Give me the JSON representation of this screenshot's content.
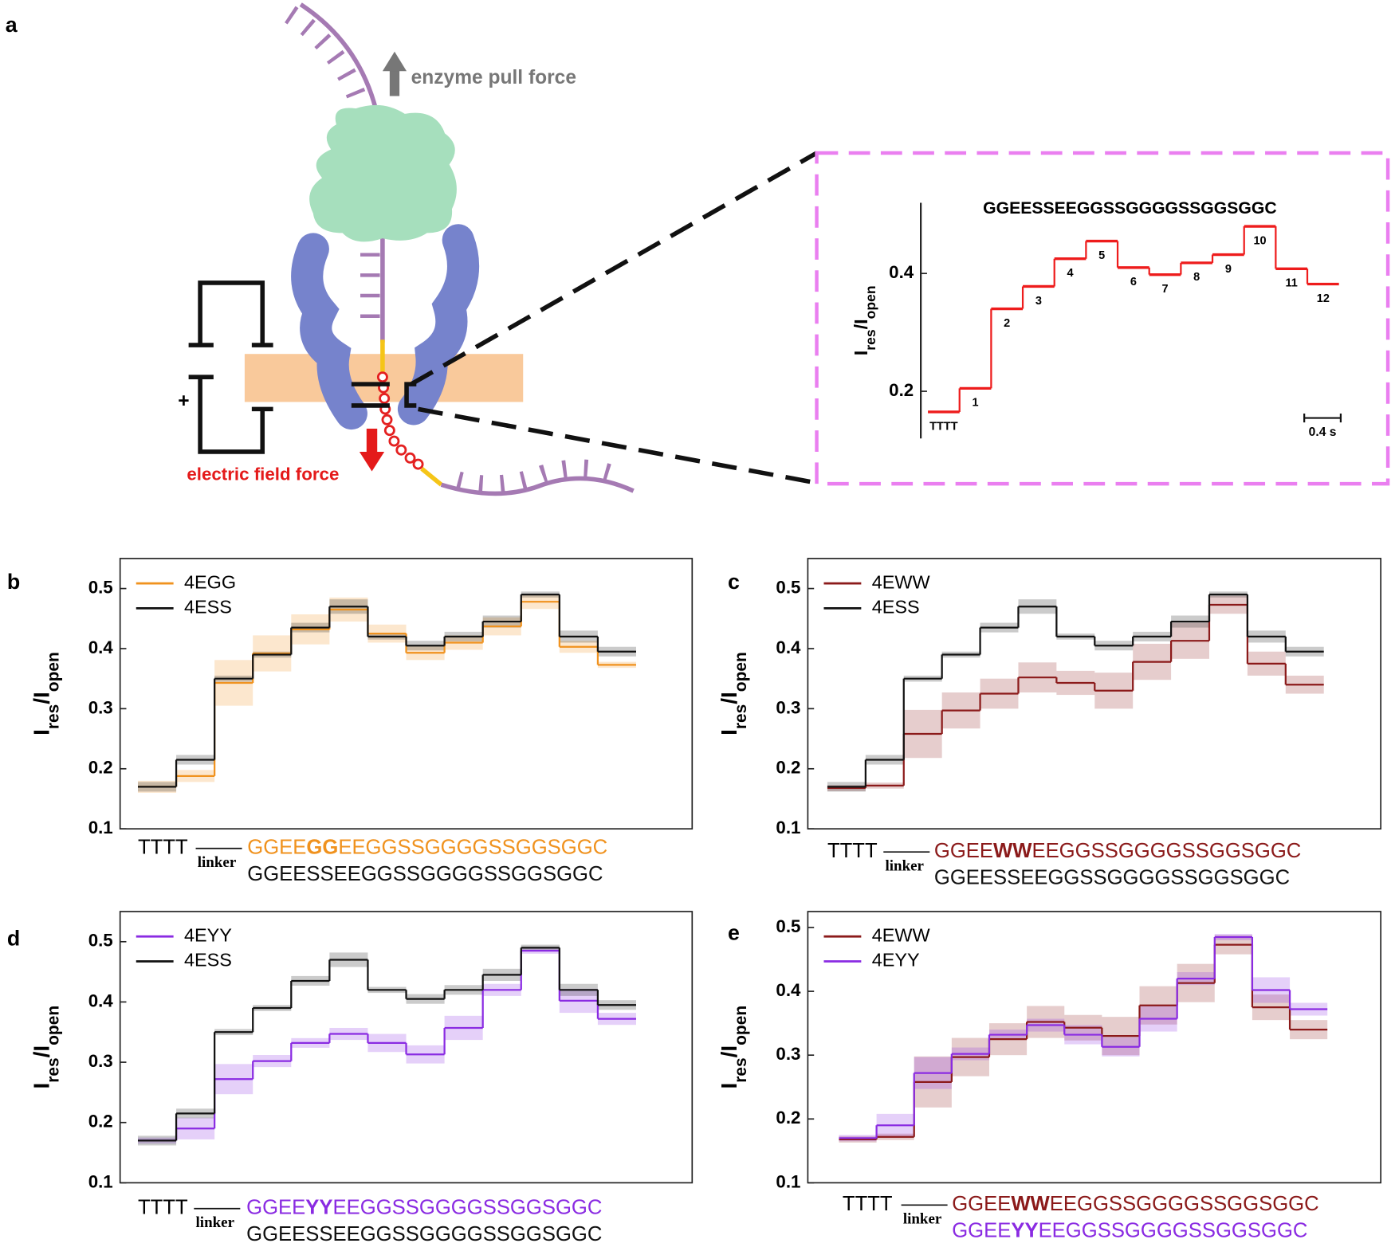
{
  "figure_a": {
    "letter": "a",
    "enzyme": "enzyme pull force",
    "electric": "electric field force",
    "plus": "+"
  },
  "chart_data": [
    {
      "type": "step",
      "title": "GGEESSEEGGSSGGGGSSGGSGGC",
      "y_label": [
        "I",
        "res",
        "/I",
        "open"
      ],
      "ylim": [
        0.12,
        0.52
      ],
      "yticks": [
        0.2,
        0.4
      ],
      "scale_bar": "0.4 s",
      "categories": [
        "TTTT",
        "1",
        "2",
        "3",
        "4",
        "5",
        "6",
        "7",
        "8",
        "9",
        "10",
        "11",
        "12"
      ],
      "series": [
        {
          "name": null,
          "color": "#ee1c1c",
          "values": [
            0.165,
            0.205,
            0.34,
            0.378,
            0.425,
            0.455,
            0.41,
            0.398,
            0.418,
            0.432,
            0.48,
            0.408,
            0.382
          ]
        }
      ]
    },
    {
      "type": "step",
      "panel": "b",
      "y_label": [
        "I",
        "res",
        "/I",
        "open"
      ],
      "ylim": [
        0.1,
        0.55
      ],
      "yticks": [
        0.1,
        0.2,
        0.3,
        0.4,
        0.5
      ],
      "legend": "upper left",
      "series": [
        {
          "name": "4EGG",
          "color": "#f0921e",
          "values": [
            0.17,
            0.188,
            0.343,
            0.392,
            0.432,
            0.465,
            0.425,
            0.393,
            0.41,
            0.437,
            0.478,
            0.403,
            0.373
          ],
          "errors": [
            0.01,
            0.01,
            0.038,
            0.03,
            0.025,
            0.02,
            0.015,
            0.012,
            0.012,
            0.015,
            0.012,
            0.01,
            0.005
          ]
        },
        {
          "name": "4ESS",
          "color": "#111111",
          "values": [
            0.17,
            0.215,
            0.35,
            0.39,
            0.435,
            0.47,
            0.42,
            0.405,
            0.42,
            0.445,
            0.49,
            0.42,
            0.395
          ],
          "errors": [
            0.008,
            0.008,
            0.005,
            0.005,
            0.008,
            0.012,
            0.005,
            0.008,
            0.008,
            0.01,
            0.005,
            0.01,
            0.008
          ]
        }
      ],
      "prefix": "TTTT",
      "linker": "linker",
      "sequences": [
        {
          "parts": [
            "GGEE",
            "GG",
            "EEGGSSGGGGSSGGSGGC"
          ],
          "color": "#f0921e"
        },
        {
          "parts": [
            "GGEESSEEGGSSGGGGSSGGSGGC"
          ],
          "color": "#111111"
        }
      ]
    },
    {
      "type": "step",
      "panel": "c",
      "y_label": [
        "I",
        "res",
        "/I",
        "open"
      ],
      "ylim": [
        0.1,
        0.55
      ],
      "yticks": [
        0.1,
        0.2,
        0.3,
        0.4,
        0.5
      ],
      "legend": "upper left",
      "series": [
        {
          "name": "4EWW",
          "color": "#8b1a1a",
          "values": [
            0.168,
            0.172,
            0.258,
            0.297,
            0.325,
            0.352,
            0.343,
            0.33,
            0.378,
            0.413,
            0.473,
            0.375,
            0.34
          ],
          "errors": [
            0.005,
            0.005,
            0.04,
            0.03,
            0.025,
            0.025,
            0.02,
            0.03,
            0.03,
            0.03,
            0.015,
            0.02,
            0.015
          ]
        },
        {
          "name": "4ESS",
          "color": "#111111",
          "values": [
            0.17,
            0.215,
            0.35,
            0.39,
            0.435,
            0.47,
            0.42,
            0.405,
            0.42,
            0.445,
            0.49,
            0.42,
            0.395
          ],
          "errors": [
            0.008,
            0.008,
            0.005,
            0.005,
            0.008,
            0.012,
            0.005,
            0.008,
            0.008,
            0.01,
            0.005,
            0.01,
            0.008
          ]
        }
      ],
      "prefix": "TTTT",
      "linker": "linker",
      "sequences": [
        {
          "parts": [
            "GGEE",
            "WW",
            "EEGGSSGGGGSSGGSGGC"
          ],
          "color": "#8b1a1a"
        },
        {
          "parts": [
            "GGEESSEEGGSSGGGGSSGGSGGC"
          ],
          "color": "#111111"
        }
      ]
    },
    {
      "type": "step",
      "panel": "d",
      "y_label": [
        "I",
        "res",
        "/I",
        "open"
      ],
      "ylim": [
        0.1,
        0.55
      ],
      "yticks": [
        0.1,
        0.2,
        0.3,
        0.4,
        0.5
      ],
      "legend": "upper left",
      "series": [
        {
          "name": "4EYY",
          "color": "#8a2be2",
          "values": [
            0.17,
            0.19,
            0.272,
            0.302,
            0.332,
            0.347,
            0.332,
            0.313,
            0.357,
            0.42,
            0.485,
            0.402,
            0.372
          ],
          "errors": [
            0.005,
            0.018,
            0.025,
            0.01,
            0.008,
            0.01,
            0.015,
            0.015,
            0.02,
            0.01,
            0.005,
            0.02,
            0.01
          ]
        },
        {
          "name": "4ESS",
          "color": "#111111",
          "values": [
            0.17,
            0.215,
            0.35,
            0.39,
            0.435,
            0.47,
            0.42,
            0.405,
            0.42,
            0.445,
            0.49,
            0.42,
            0.395
          ],
          "errors": [
            0.008,
            0.008,
            0.005,
            0.005,
            0.008,
            0.012,
            0.005,
            0.008,
            0.008,
            0.01,
            0.005,
            0.01,
            0.008
          ]
        }
      ],
      "prefix": "TTTT",
      "linker": "linker",
      "sequences": [
        {
          "parts": [
            "GGEE",
            "YY",
            "EEGGSSGGGGSSGGSGGC"
          ],
          "color": "#8a2be2"
        },
        {
          "parts": [
            "GGEESSEEGGSSGGGGSSGGSGGC"
          ],
          "color": "#111111"
        }
      ]
    },
    {
      "type": "step",
      "panel": "e",
      "y_label": [
        "I",
        "res",
        "/I",
        "open"
      ],
      "ylim": [
        0.1,
        0.525
      ],
      "yticks": [
        0.1,
        0.2,
        0.3,
        0.4,
        0.5
      ],
      "legend": "upper left",
      "series": [
        {
          "name": "4EWW",
          "color": "#8b1a1a",
          "values": [
            0.168,
            0.172,
            0.258,
            0.297,
            0.325,
            0.352,
            0.343,
            0.33,
            0.378,
            0.413,
            0.473,
            0.375,
            0.34
          ],
          "errors": [
            0.005,
            0.005,
            0.04,
            0.03,
            0.025,
            0.025,
            0.02,
            0.03,
            0.03,
            0.03,
            0.015,
            0.02,
            0.015
          ]
        },
        {
          "name": "4EYY",
          "color": "#8a2be2",
          "values": [
            0.17,
            0.19,
            0.272,
            0.302,
            0.332,
            0.347,
            0.332,
            0.313,
            0.357,
            0.42,
            0.485,
            0.402,
            0.372
          ],
          "errors": [
            0.005,
            0.018,
            0.025,
            0.01,
            0.008,
            0.01,
            0.015,
            0.015,
            0.02,
            0.01,
            0.005,
            0.02,
            0.01
          ]
        }
      ],
      "prefix": "TTTT",
      "linker": "linker",
      "sequences": [
        {
          "parts": [
            "GGEE",
            "WW",
            "EEGGSSGGGGSSGGSGGC"
          ],
          "color": "#8b1a1a"
        },
        {
          "parts": [
            "GGEE",
            "YY",
            "EEGGSSGGGGSSGGSGGC"
          ],
          "color": "#8a2be2"
        }
      ]
    }
  ]
}
